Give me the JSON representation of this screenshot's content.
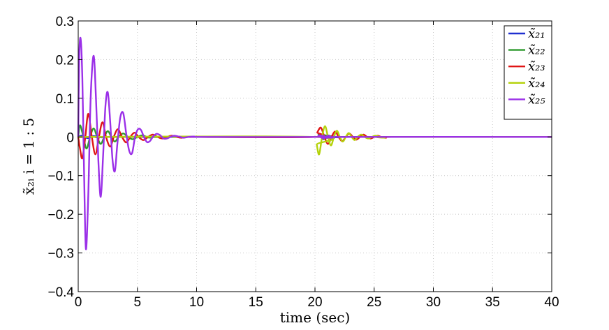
{
  "chart_data": {
    "type": "line",
    "title": "",
    "xlabel": "time (sec)",
    "ylabel": "x̃₂ᵢ  i = 1 : 5",
    "xlim": [
      0,
      40
    ],
    "ylim": [
      -0.4,
      0.3
    ],
    "xticks": [
      0,
      5,
      10,
      15,
      20,
      25,
      30,
      35,
      40
    ],
    "xtick_labels": [
      "0",
      "5",
      "10",
      "15",
      "20",
      "25",
      "30",
      "35",
      "40"
    ],
    "yticks": [
      -0.4,
      -0.3,
      -0.2,
      -0.1,
      0,
      0.1,
      0.2,
      0.3
    ],
    "ytick_labels": [
      "−0.4",
      "−0.3",
      "−0.2",
      "−0.1",
      "0",
      "0.1",
      "0.2",
      "0.3"
    ],
    "grid": true,
    "legend_position": "top-right",
    "series": [
      {
        "name": "x̃₂₁",
        "color": "#1f2fd0",
        "points": [
          [
            0,
            0
          ],
          [
            0.3,
            0.003
          ],
          [
            0.8,
            -0.003
          ],
          [
            1.3,
            0.002
          ],
          [
            2,
            -0.001
          ],
          [
            3,
            0
          ],
          [
            20,
            0
          ],
          [
            20.3,
            0.003
          ],
          [
            20.8,
            -0.003
          ],
          [
            21.4,
            0.002
          ],
          [
            22,
            -0.001
          ],
          [
            23,
            0
          ],
          [
            40,
            0
          ]
        ]
      },
      {
        "name": "x̃₂₂",
        "color": "#2e9a2e",
        "points": [
          [
            0,
            0
          ],
          [
            0.15,
            0.03
          ],
          [
            0.4,
            0.005
          ],
          [
            0.7,
            -0.03
          ],
          [
            1.0,
            0.0
          ],
          [
            1.3,
            0.022
          ],
          [
            1.6,
            0.0
          ],
          [
            1.9,
            -0.018
          ],
          [
            2.2,
            0.0
          ],
          [
            2.5,
            0.015
          ],
          [
            2.8,
            0.0
          ],
          [
            3.1,
            -0.012
          ],
          [
            3.4,
            0.0
          ],
          [
            3.8,
            0.009
          ],
          [
            4.2,
            0.0
          ],
          [
            4.6,
            -0.006
          ],
          [
            5.0,
            0.0
          ],
          [
            5.4,
            0.004
          ],
          [
            5.8,
            0.0
          ],
          [
            6.2,
            -0.002
          ],
          [
            7,
            0
          ],
          [
            20,
            0
          ],
          [
            20.3,
            0.006
          ],
          [
            20.7,
            -0.006
          ],
          [
            21.1,
            0.004
          ],
          [
            21.6,
            -0.003
          ],
          [
            22,
            0
          ],
          [
            40,
            0
          ]
        ]
      },
      {
        "name": "x̃₂₃",
        "color": "#e01515",
        "points": [
          [
            0,
            0
          ],
          [
            0.15,
            -0.03
          ],
          [
            0.35,
            -0.055
          ],
          [
            0.6,
            0.0
          ],
          [
            0.85,
            0.06
          ],
          [
            1.15,
            0.0
          ],
          [
            1.45,
            -0.045
          ],
          [
            1.75,
            0.0
          ],
          [
            2.05,
            0.038
          ],
          [
            2.35,
            0.0
          ],
          [
            2.7,
            -0.025
          ],
          [
            3.0,
            0.0
          ],
          [
            3.35,
            0.02
          ],
          [
            3.7,
            0.0
          ],
          [
            4.05,
            -0.014
          ],
          [
            4.4,
            0.0
          ],
          [
            4.75,
            0.011
          ],
          [
            5.1,
            0.0
          ],
          [
            5.5,
            -0.008
          ],
          [
            5.9,
            0.0
          ],
          [
            6.3,
            0.006
          ],
          [
            6.7,
            0.0
          ],
          [
            7.1,
            -0.004
          ],
          [
            7.5,
            0.0
          ],
          [
            7.9,
            0.003
          ],
          [
            8.3,
            0.0
          ],
          [
            8.7,
            -0.002
          ],
          [
            9.2,
            0.0
          ],
          [
            9.6,
            0.001
          ],
          [
            10.2,
            0
          ],
          [
            20,
            0
          ],
          [
            20.2,
            0.012
          ],
          [
            20.5,
            0.024
          ],
          [
            20.8,
            0.0
          ],
          [
            21.1,
            -0.018
          ],
          [
            21.4,
            0.0
          ],
          [
            21.7,
            0.014
          ],
          [
            22.0,
            0.0
          ],
          [
            22.3,
            -0.011
          ],
          [
            22.6,
            0.0
          ],
          [
            22.9,
            0.009
          ],
          [
            23.2,
            0.0
          ],
          [
            23.5,
            -0.007
          ],
          [
            23.8,
            0.0
          ],
          [
            24.1,
            0.006
          ],
          [
            24.4,
            0.0
          ],
          [
            24.7,
            -0.004
          ],
          [
            25.0,
            0.0
          ],
          [
            25.3,
            0.003
          ],
          [
            25.6,
            0.0
          ],
          [
            26.0,
            -0.002
          ],
          [
            26.5,
            0
          ],
          [
            40,
            0
          ]
        ]
      },
      {
        "name": "x̃₂₄",
        "color": "#b4d20a",
        "points": [
          [
            0,
            0
          ],
          [
            20,
            0
          ],
          [
            20.15,
            -0.02
          ],
          [
            20.35,
            -0.045
          ],
          [
            20.6,
            0.0
          ],
          [
            20.85,
            0.028
          ],
          [
            21.1,
            0.0
          ],
          [
            21.35,
            -0.022
          ],
          [
            21.6,
            0.0
          ],
          [
            21.85,
            0.016
          ],
          [
            22.1,
            0.0
          ],
          [
            22.35,
            -0.012
          ],
          [
            22.6,
            0.0
          ],
          [
            22.85,
            0.01
          ],
          [
            23.1,
            0.0
          ],
          [
            23.35,
            -0.008
          ],
          [
            23.6,
            0.0
          ],
          [
            23.9,
            0.006
          ],
          [
            24.2,
            0.0
          ],
          [
            24.5,
            -0.004
          ],
          [
            24.8,
            0.0
          ],
          [
            25.1,
            0.003
          ],
          [
            25.5,
            0.0
          ],
          [
            25.9,
            -0.002
          ],
          [
            26.4,
            0
          ],
          [
            40,
            0
          ]
        ]
      },
      {
        "name": "x̃₂₅",
        "color": "#9b30e8",
        "points": [
          [
            0,
            0
          ],
          [
            0.08,
            0.2
          ],
          [
            0.2,
            0.255
          ],
          [
            0.35,
            0.15
          ],
          [
            0.5,
            -0.1
          ],
          [
            0.65,
            -0.29
          ],
          [
            0.85,
            -0.15
          ],
          [
            1.05,
            0.1
          ],
          [
            1.3,
            0.21
          ],
          [
            1.5,
            0.1
          ],
          [
            1.7,
            -0.06
          ],
          [
            1.9,
            -0.155
          ],
          [
            2.1,
            -0.05
          ],
          [
            2.3,
            0.08
          ],
          [
            2.5,
            0.115
          ],
          [
            2.7,
            0.04
          ],
          [
            2.9,
            -0.06
          ],
          [
            3.1,
            -0.088
          ],
          [
            3.3,
            -0.02
          ],
          [
            3.55,
            0.05
          ],
          [
            3.8,
            0.062
          ],
          [
            4.05,
            0.01
          ],
          [
            4.3,
            -0.035
          ],
          [
            4.55,
            -0.042
          ],
          [
            4.8,
            0.0
          ],
          [
            5.05,
            0.02
          ],
          [
            5.3,
            0.018
          ],
          [
            5.55,
            0.0
          ],
          [
            5.8,
            -0.013
          ],
          [
            6.05,
            -0.011
          ],
          [
            6.3,
            0.0
          ],
          [
            6.6,
            0.008
          ],
          [
            6.9,
            0.005
          ],
          [
            7.2,
            -0.004
          ],
          [
            7.5,
            -0.004
          ],
          [
            7.8,
            0.0
          ],
          [
            8.1,
            0.003
          ],
          [
            8.5,
            0.001
          ],
          [
            8.9,
            -0.002
          ],
          [
            9.3,
            0.0
          ],
          [
            9.8,
            0.001
          ],
          [
            10.4,
            0
          ],
          [
            20,
            0
          ],
          [
            20.3,
            0.004
          ],
          [
            20.7,
            -0.004
          ],
          [
            21.1,
            0.003
          ],
          [
            21.5,
            -0.002
          ],
          [
            22,
            0
          ],
          [
            40,
            0
          ]
        ]
      }
    ]
  }
}
